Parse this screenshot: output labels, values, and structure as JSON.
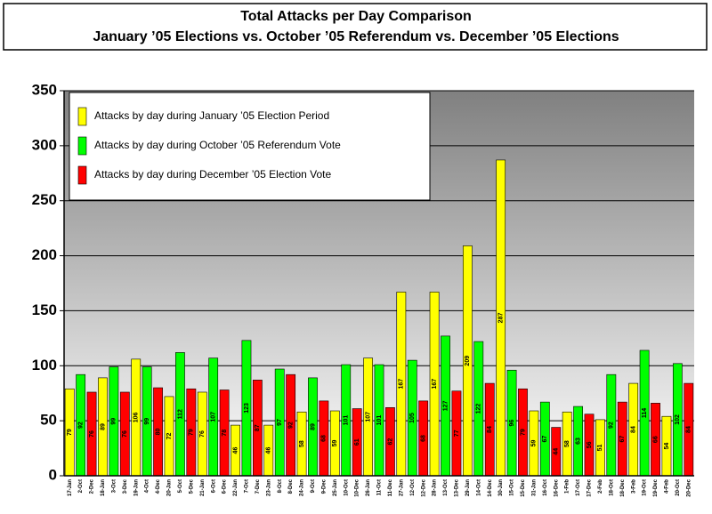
{
  "chart_data": {
    "type": "bar",
    "title": "Total Attacks per Day Comparison",
    "subtitle": "January ’05 Elections vs. October ’05 Referendum vs. December ’05 Elections",
    "ylim": [
      0,
      350
    ],
    "yticks": [
      0,
      50,
      100,
      150,
      200,
      250,
      300,
      350
    ],
    "grid": true,
    "series": [
      {
        "name": "Attacks by day during January ’05 Election Period",
        "color": "#ffff00",
        "categories": [
          "17-Jan",
          "18-Jan",
          "19-Jan",
          "20-Jan",
          "21-Jan",
          "22-Jan",
          "23-Jan",
          "24-Jan",
          "25-Jan",
          "26-Jan",
          "27-Jan",
          "28-Jan",
          "29-Jan",
          "30-Jan",
          "31-Jan",
          "1-Feb",
          "2-Feb",
          "3-Feb",
          "4-Feb"
        ],
        "values": [
          79,
          89,
          106,
          72,
          76,
          46,
          46,
          58,
          59,
          107,
          167,
          167,
          209,
          287,
          59,
          58,
          51,
          84,
          54
        ]
      },
      {
        "name": "Attacks by day during October ’05 Referendum Vote",
        "color": "#00ff00",
        "categories": [
          "2-Oct",
          "3-Oct",
          "4-Oct",
          "5-Oct",
          "6-Oct",
          "7-Oct",
          "8-Oct",
          "9-Oct",
          "10-Oct",
          "11-Oct",
          "12-Oct",
          "13-Oct",
          "14-Oct",
          "15-Oct",
          "16-Oct",
          "17-Oct",
          "18-Oct",
          "19-Oct",
          "20-Oct"
        ],
        "values": [
          92,
          99,
          99,
          112,
          107,
          123,
          97,
          89,
          101,
          101,
          105,
          127,
          122,
          96,
          67,
          63,
          92,
          114,
          102
        ]
      },
      {
        "name": "Attacks by day during December ’05 Election Vote",
        "color": "#ff0000",
        "categories": [
          "2-Dec",
          "3-Dec",
          "4-Dec",
          "5-Dec",
          "6-Dec",
          "7-Dec",
          "8-Dec",
          "9-Dec",
          "10-Dec",
          "11-Dec",
          "12-Dec",
          "13-Dec",
          "14-Dec",
          "15-Dec",
          "16-Dec",
          "17-Dec",
          "18-Dec",
          "19-Dec",
          "20-Dec"
        ],
        "values": [
          76,
          76,
          80,
          79,
          78,
          87,
          92,
          68,
          61,
          62,
          68,
          77,
          84,
          79,
          44,
          56,
          67,
          66,
          84
        ]
      }
    ]
  }
}
